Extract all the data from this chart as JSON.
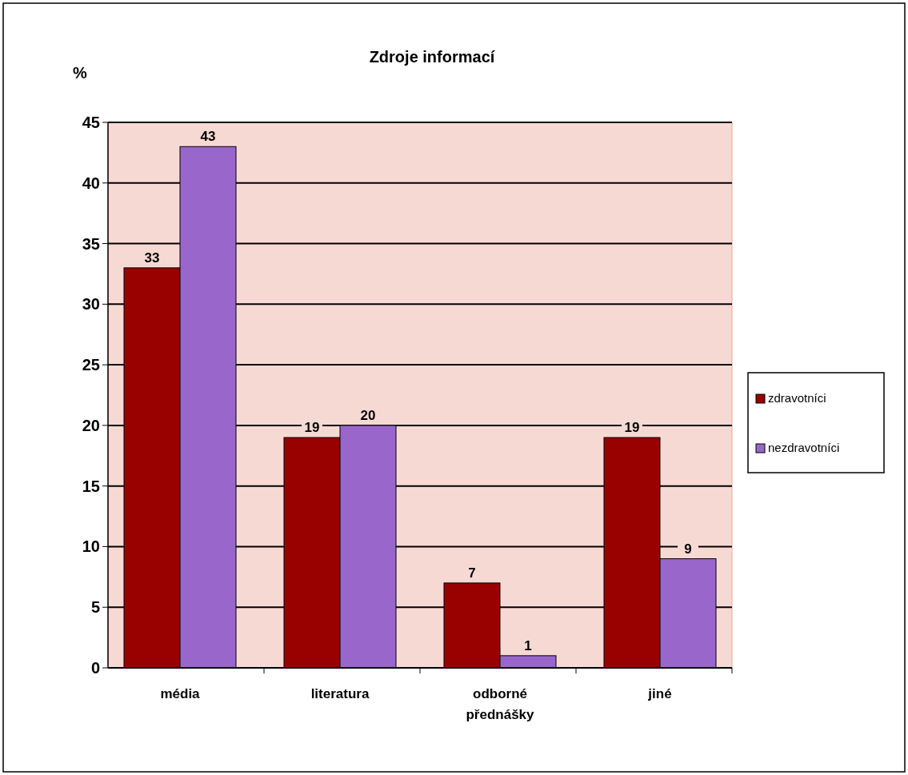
{
  "chart_data": {
    "type": "bar",
    "title": "Zdroje informací",
    "ylabel": "%",
    "categories": [
      "média",
      "literatura",
      "odborné přednášky",
      "jiné"
    ],
    "series": [
      {
        "name": "zdravotníci",
        "color": "#990000",
        "values": [
          33,
          19,
          7,
          19
        ]
      },
      {
        "name": "nezdravotníci",
        "color": "#9966cc",
        "values": [
          43,
          20,
          1,
          9
        ]
      }
    ],
    "ylim": [
      0,
      45
    ],
    "yticks": [
      0,
      5,
      10,
      15,
      20,
      25,
      30,
      35,
      40,
      45
    ],
    "grid": "y",
    "legend": "right",
    "data_labels": true
  }
}
